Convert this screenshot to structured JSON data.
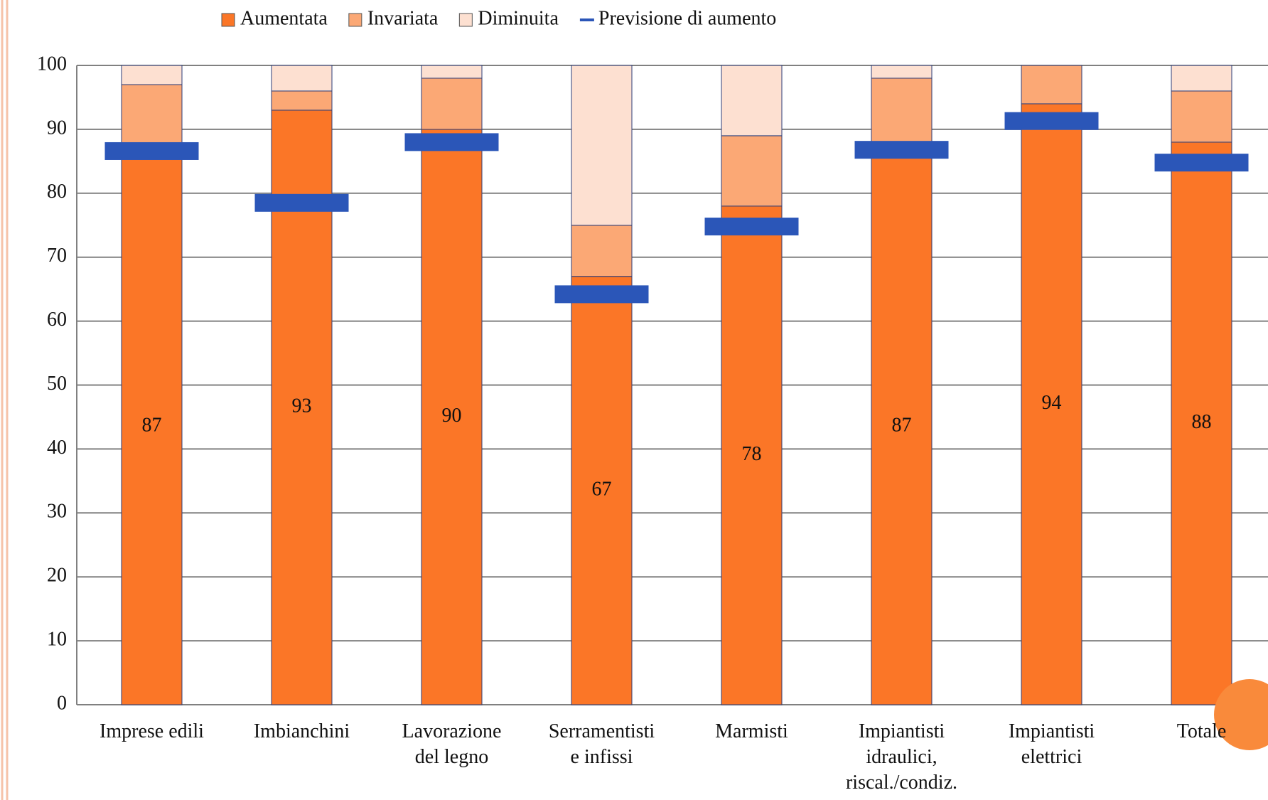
{
  "chart_data": {
    "type": "bar",
    "stacked": true,
    "categories": [
      "Imprese edili",
      "Imbianchini",
      "Lavorazione\ndel legno",
      "Serramentisti\ne infissi",
      "Marmisti",
      "Impiantisti\nidraulici,\nriscal./condiz.",
      "Impiantisti\nelettrici",
      "Totale"
    ],
    "series": [
      {
        "name": "Aumentata",
        "color": "#fb7627",
        "values": [
          87,
          93,
          90,
          67,
          78,
          87,
          94,
          88
        ],
        "show_labels": true
      },
      {
        "name": "Invariata",
        "color": "#fba875",
        "values": [
          10,
          3,
          8,
          8,
          11,
          11,
          6,
          8
        ]
      },
      {
        "name": "Diminuita",
        "color": "#fde0d1",
        "values": [
          3,
          4,
          2,
          25,
          11,
          2,
          0,
          4
        ]
      },
      {
        "name": "Previsione di aumento",
        "color": "#2b56b8",
        "type": "marker",
        "values": [
          86.6,
          78.5,
          88,
          64.2,
          74.8,
          86.8,
          91.3,
          84.8
        ]
      }
    ],
    "ylim": [
      0,
      100
    ],
    "yticks": [
      0,
      10,
      20,
      30,
      40,
      50,
      60,
      70,
      80,
      90,
      100
    ],
    "grid": true,
    "legend": "top"
  }
}
